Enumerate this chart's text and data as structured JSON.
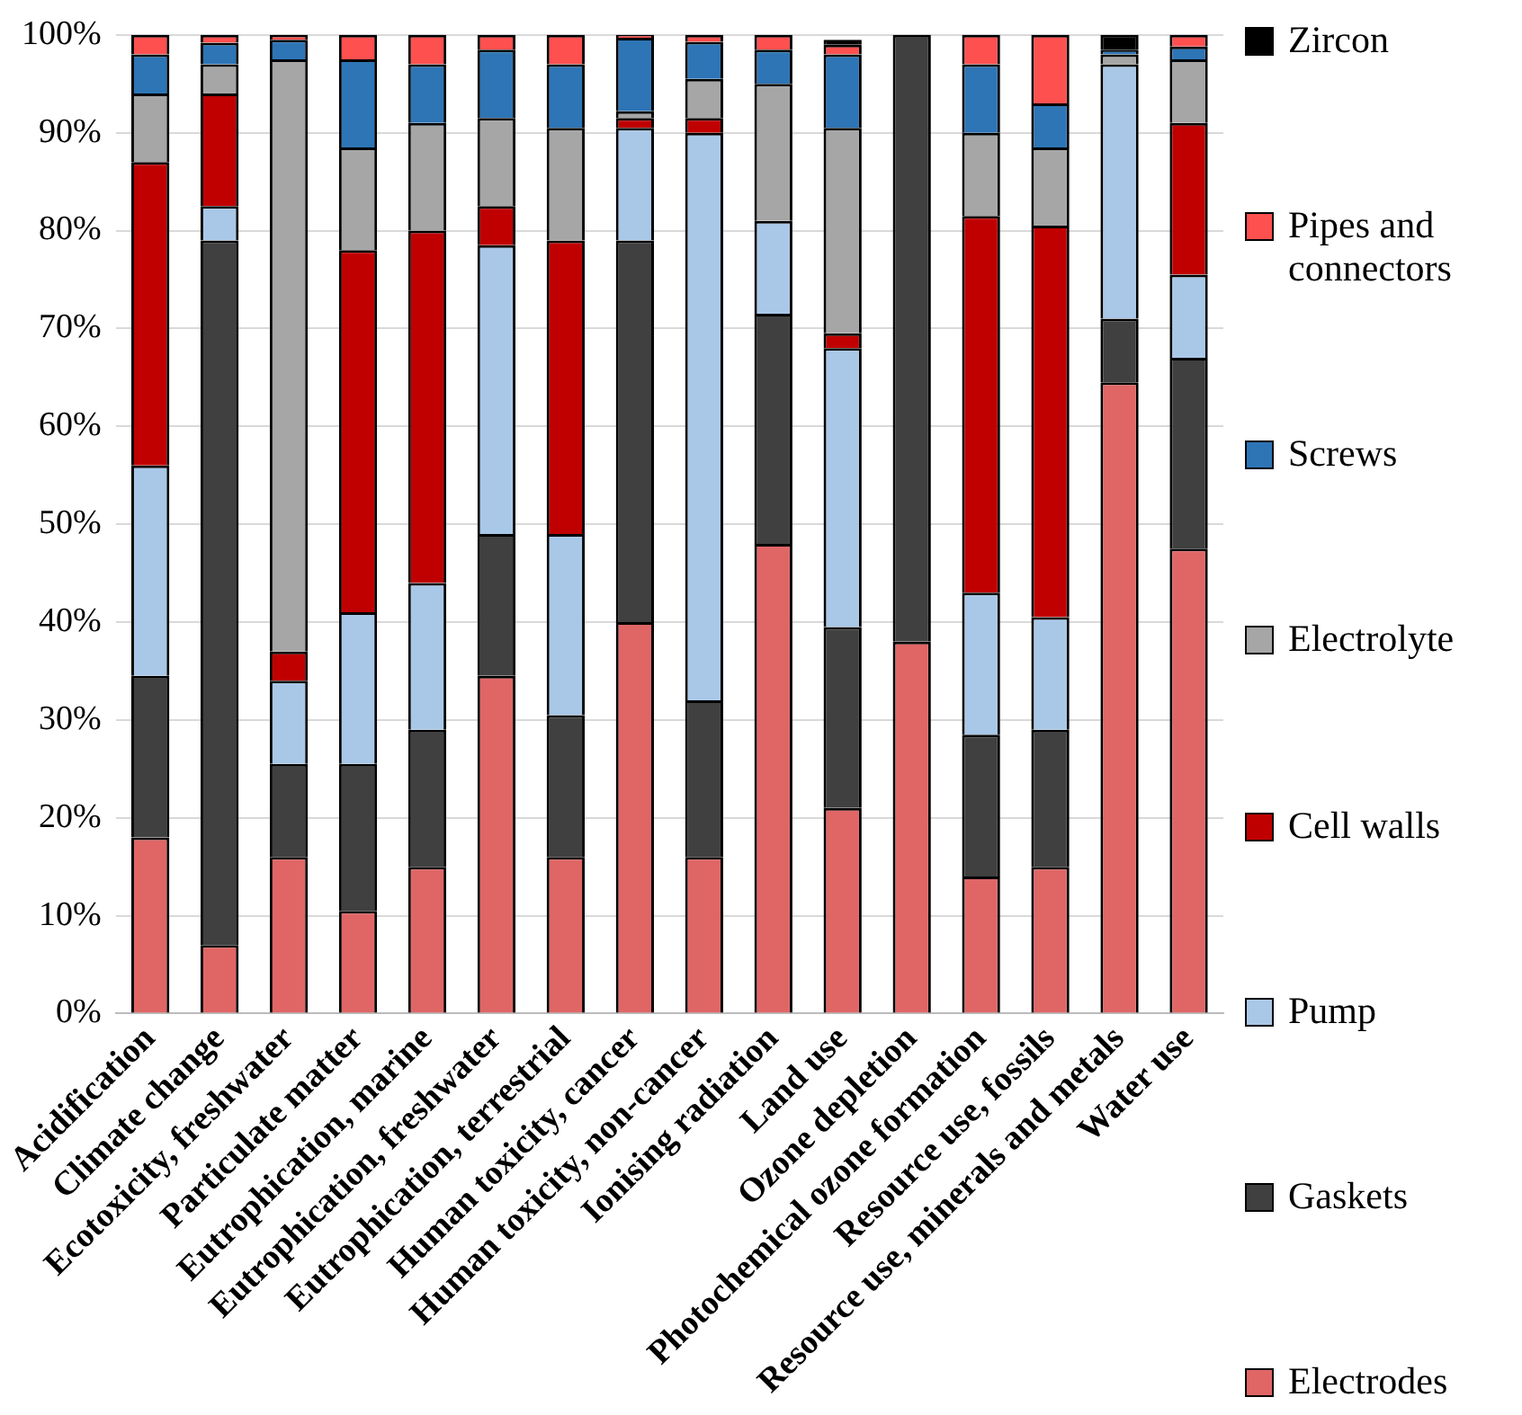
{
  "chart_data": {
    "type": "bar",
    "stacked": true,
    "categories": [
      "Acidification",
      "Climate change",
      "Ecotoxicity, freshwater",
      "Particulate matter",
      "Eutrophication, marine",
      "Eutrophication, freshwater",
      "Eutrophication, terrestrial",
      "Human toxicity, cancer",
      "Human toxicity, non-cancer",
      "Ionising radiation",
      "Land use",
      "Ozone depletion",
      "Photochemical ozone formation",
      "Resource use, fossils",
      "Resource use, minerals and metals",
      "Water use"
    ],
    "series": [
      {
        "name": "Electrodes",
        "color": "#e06666",
        "values": [
          18,
          7,
          16,
          10.5,
          15,
          34.5,
          16,
          40,
          16,
          48,
          21,
          38,
          14,
          15,
          64.5,
          47.5
        ]
      },
      {
        "name": "Gaskets",
        "color": "#404040",
        "values": [
          16.5,
          72,
          9.5,
          15,
          14,
          14.5,
          14.5,
          39,
          16,
          23.5,
          18.5,
          62,
          14.5,
          14,
          6.5,
          19.5
        ]
      },
      {
        "name": "Pump",
        "color": "#a9c8e8",
        "values": [
          21.5,
          3.5,
          8.5,
          15.5,
          15,
          29.5,
          18.5,
          11.5,
          58,
          9.5,
          28.5,
          0,
          14.5,
          11.5,
          26,
          8.5
        ]
      },
      {
        "name": "Cell walls",
        "color": "#c00000",
        "values": [
          31,
          11.5,
          3,
          37,
          36,
          4,
          30,
          1,
          1.5,
          0,
          1.5,
          0,
          38.5,
          40,
          0,
          15.5
        ]
      },
      {
        "name": "Electrolyte",
        "color": "#a6a6a6",
        "values": [
          7,
          3,
          60.5,
          10.5,
          11,
          9,
          11.5,
          0.7,
          4,
          14,
          21,
          0,
          8.5,
          8,
          1,
          6.5
        ]
      },
      {
        "name": "Screws",
        "color": "#2e75b6",
        "values": [
          4,
          2.2,
          2,
          9,
          6,
          7,
          6.5,
          7.5,
          3.8,
          3.5,
          7.5,
          0,
          7,
          4.5,
          0.5,
          1.3
        ]
      },
      {
        "name": "Pipes and connectors",
        "color": "#ff5050",
        "values": [
          2,
          0.8,
          0.5,
          2.5,
          3,
          1.5,
          3,
          0.3,
          0.7,
          1.5,
          1,
          0,
          3,
          7,
          0,
          1.2
        ]
      },
      {
        "name": "Zircon",
        "color": "#000000",
        "values": [
          0,
          0,
          0,
          0,
          0,
          0,
          0,
          0,
          0,
          0,
          0.5,
          0,
          0,
          0,
          1.5,
          0
        ]
      }
    ],
    "ylim": [
      0,
      100
    ],
    "yticks": [
      {
        "value": 0,
        "label": "0%"
      },
      {
        "value": 10,
        "label": "10%"
      },
      {
        "value": 20,
        "label": "20%"
      },
      {
        "value": 30,
        "label": "30%"
      },
      {
        "value": 40,
        "label": "40%"
      },
      {
        "value": 50,
        "label": "50%"
      },
      {
        "value": 60,
        "label": "60%"
      },
      {
        "value": 70,
        "label": "70%"
      },
      {
        "value": 80,
        "label": "80%"
      },
      {
        "value": 90,
        "label": "90%"
      },
      {
        "value": 100,
        "label": "100%"
      }
    ],
    "grid": "y",
    "legend": "right"
  }
}
